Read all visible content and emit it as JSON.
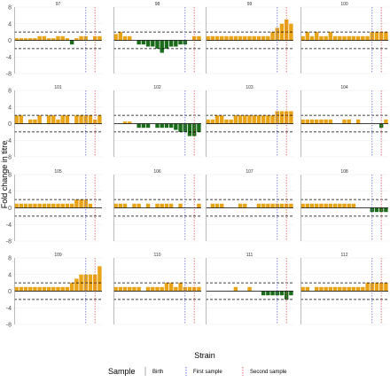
{
  "chart_data": {
    "type": "bar",
    "xlabel": "Strain",
    "ylabel": "Fold change in titre",
    "ylim": [
      -8,
      8
    ],
    "yticks": [
      -8,
      -4,
      0,
      4,
      8
    ],
    "threshold_lines": [
      2,
      -2
    ],
    "colors": {
      "positive": "#e8a317",
      "negative": "#1a6b1a",
      "birth": "#aaaaaa",
      "first_sample": "#6b6bdc",
      "second_sample": "#e06060",
      "panel_bg": "#ffffff",
      "grid": "#ebebeb"
    },
    "x_ticks": [
      "",
      "",
      "",
      "",
      "",
      "",
      "",
      "",
      "",
      "",
      "",
      "",
      "",
      "",
      "",
      "",
      "",
      "",
      ""
    ],
    "legend": {
      "title": "Sample",
      "items": [
        {
          "label": "Birth",
          "color_key": "birth"
        },
        {
          "label": "First sample",
          "color_key": "first_sample"
        },
        {
          "label": "Second sample",
          "color_key": "second_sample"
        }
      ]
    },
    "panels": [
      {
        "id": "97",
        "birth": 0,
        "first": 15,
        "second": 17,
        "values": [
          0.5,
          0.5,
          0.5,
          0.5,
          0.5,
          1,
          1,
          0.5,
          0.5,
          1,
          1,
          0.5,
          -1,
          0.5,
          1,
          1,
          0,
          1,
          1
        ]
      },
      {
        "id": "98",
        "birth": 0,
        "first": 15,
        "second": 17,
        "values": [
          1.5,
          2,
          1,
          1,
          0,
          -1,
          -1,
          -1.5,
          -1.5,
          -2,
          -3,
          -2,
          -1.5,
          -1.5,
          -1,
          -1,
          0,
          1,
          1
        ]
      },
      {
        "id": "99",
        "birth": 0,
        "first": 15,
        "second": 17,
        "values": [
          1,
          1,
          1,
          1,
          1,
          1,
          1,
          1,
          1,
          1,
          1,
          1,
          1,
          1,
          2,
          3,
          4,
          5,
          4
        ]
      },
      {
        "id": "100",
        "birth": 0,
        "first": 15,
        "second": 17,
        "values": [
          1,
          2,
          1,
          2,
          1,
          1,
          2,
          1,
          1,
          1,
          1,
          1,
          1,
          1,
          1,
          2,
          2,
          2,
          2
        ]
      },
      {
        "id": "101",
        "birth": 0,
        "first": 15,
        "second": 17,
        "values": [
          2,
          2,
          0,
          1,
          1,
          2,
          0,
          2,
          2,
          1,
          2,
          2,
          0,
          2,
          2,
          2,
          2,
          1,
          2
        ]
      },
      {
        "id": "102",
        "birth": 0,
        "first": 15,
        "second": 17,
        "values": [
          0,
          0,
          0.5,
          0.5,
          0,
          -1,
          -1,
          -1,
          0,
          -1,
          -1,
          -1,
          -1,
          -1.5,
          -2,
          -2,
          -3,
          -3,
          -2
        ]
      },
      {
        "id": "103",
        "birth": 0,
        "first": 15,
        "second": 17,
        "values": [
          1,
          1,
          2,
          2,
          1,
          1,
          2,
          2,
          2,
          2,
          2,
          2,
          2,
          2,
          2,
          3,
          3,
          3,
          3
        ]
      },
      {
        "id": "104",
        "birth": 0,
        "first": 15,
        "second": 17,
        "values": [
          1,
          1,
          1,
          1,
          1,
          1,
          1,
          0,
          0,
          1,
          1,
          0,
          1,
          0,
          0,
          0,
          0,
          -1,
          1
        ]
      },
      {
        "id": "105",
        "birth": 0,
        "first": 15,
        "second": 17,
        "values": [
          1,
          1,
          1,
          1,
          1,
          1,
          1,
          1,
          1,
          1,
          1,
          1,
          1,
          2,
          2,
          2,
          1,
          0,
          0
        ]
      },
      {
        "id": "106",
        "birth": 0,
        "first": 15,
        "second": 17,
        "values": [
          1,
          1,
          1,
          0,
          1,
          1,
          0,
          1,
          0,
          1,
          1,
          1,
          1,
          0,
          1,
          0,
          0,
          0,
          1
        ]
      },
      {
        "id": "107",
        "birth": 0,
        "first": 15,
        "second": 17,
        "values": [
          0,
          1,
          1,
          1,
          0,
          0,
          0,
          1,
          1,
          0,
          0,
          1,
          1,
          1,
          1,
          1,
          1,
          1,
          1
        ]
      },
      {
        "id": "108",
        "birth": 0,
        "first": 15,
        "second": 17,
        "values": [
          1,
          1,
          1,
          1,
          1,
          1,
          1,
          1,
          1,
          1,
          1,
          1,
          0,
          0,
          0,
          -1,
          -1,
          -1,
          -1
        ]
      },
      {
        "id": "109",
        "birth": 0,
        "first": 15,
        "second": 17,
        "values": [
          1,
          1,
          1,
          1,
          1,
          1,
          1,
          1,
          1,
          1,
          1,
          1,
          2,
          3,
          4,
          4,
          4,
          4,
          6
        ]
      },
      {
        "id": "110",
        "birth": 0,
        "first": 15,
        "second": 17,
        "values": [
          1,
          1,
          1,
          1,
          1,
          1,
          0,
          1,
          1,
          1,
          1,
          2,
          2,
          1,
          2,
          1,
          1,
          1,
          1
        ]
      },
      {
        "id": "111",
        "birth": 0,
        "first": 15,
        "second": 17,
        "values": [
          0,
          0,
          0,
          0,
          0,
          0,
          1,
          0,
          0,
          1,
          0,
          0,
          -1,
          -1,
          -1,
          -1,
          -1,
          -2,
          -1
        ]
      },
      {
        "id": "112",
        "birth": 0,
        "first": 15,
        "second": 17,
        "values": [
          1,
          1,
          0,
          1,
          1,
          1,
          1,
          1,
          1,
          1,
          1,
          1,
          1,
          1,
          2,
          2,
          2,
          2,
          2
        ]
      }
    ]
  }
}
